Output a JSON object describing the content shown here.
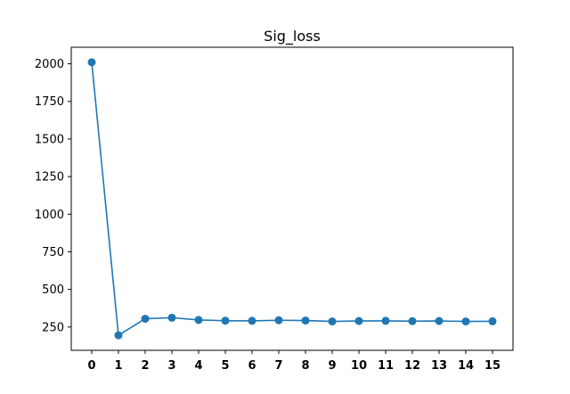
{
  "chart_data": {
    "type": "line",
    "title": "Sig_loss",
    "xlabel": "",
    "ylabel": "",
    "x": [
      0,
      1,
      2,
      3,
      4,
      5,
      6,
      7,
      8,
      9,
      10,
      11,
      12,
      13,
      14,
      15
    ],
    "series": [
      {
        "values": [
          2010,
          195,
          305,
          312,
          297,
          292,
          291,
          295,
          293,
          287,
          290,
          291,
          289,
          290,
          287,
          288
        ],
        "color": "#1f77b4"
      }
    ],
    "ylim": [
      95,
      2110
    ],
    "yticks": [
      250,
      500,
      750,
      1000,
      1250,
      1500,
      1750,
      2000
    ],
    "marker": "circle",
    "grid": false
  }
}
